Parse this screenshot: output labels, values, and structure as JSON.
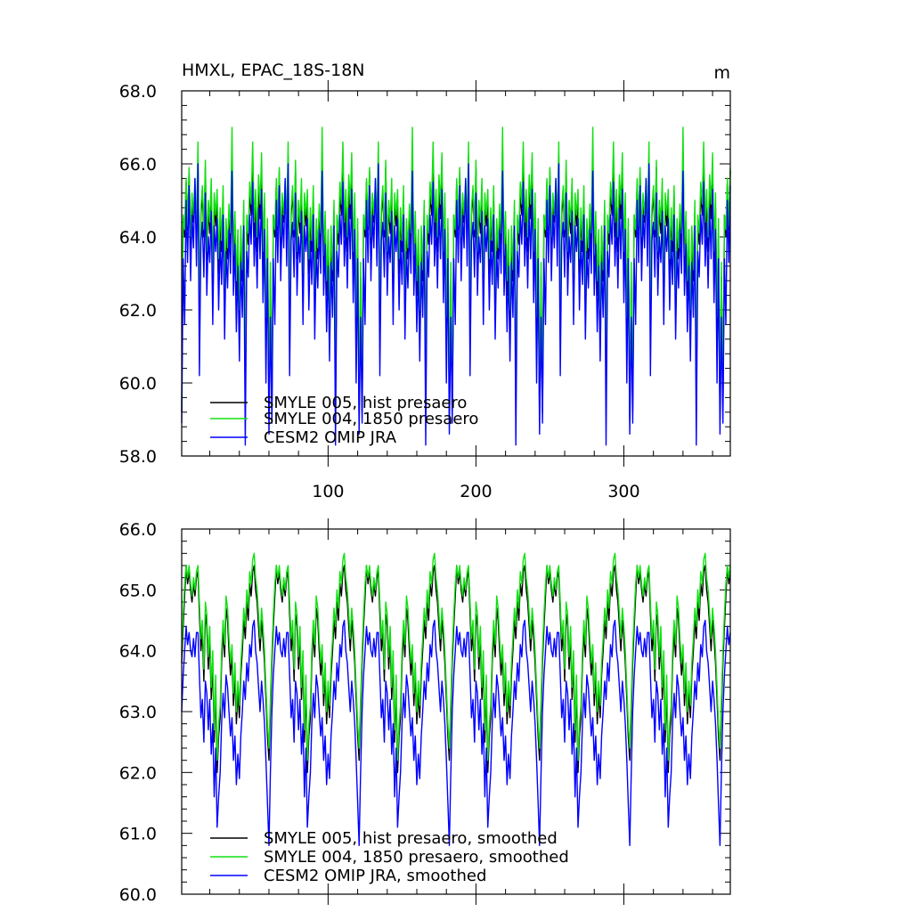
{
  "chart_data": [
    {
      "type": "line",
      "title": "HMXL, EPAC_18S-18N",
      "unit": "m",
      "xlabel": "",
      "ylabel": "",
      "xlim": [
        1,
        372
      ],
      "ylim": [
        58.0,
        68.0
      ],
      "y_ticks": [
        "58.0",
        "60.0",
        "62.0",
        "64.0",
        "66.0",
        "68.0"
      ],
      "x_ticks": [
        "100",
        "200",
        "300"
      ],
      "x_tick_values": [
        100,
        200,
        300
      ],
      "legend_position": "bottom-left",
      "series": [
        {
          "name": "SMYLE 005, hist presaero",
          "color": "#000000",
          "cycle": [
            59.2,
            64.6,
            64.0,
            65.5,
            64.2,
            65.8,
            63.8,
            65.0,
            64.4,
            65.4,
            64.0,
            66.2,
            61.8,
            64.6,
            65.2,
            64.0,
            65.9,
            63.4,
            64.8,
            64.1,
            65.3,
            62.6,
            64.9,
            64.3,
            65.0,
            63.0,
            64.5,
            63.6,
            65.1,
            62.0,
            64.2,
            63.4,
            64.6,
            63.8,
            66.3,
            63.2,
            64.4,
            62.4,
            63.9,
            61.6,
            64.0,
            62.8,
            64.7,
            59.6,
            64.3,
            63.8,
            65.2,
            64.6,
            66.1,
            64.0,
            64.9,
            63.6,
            65.3,
            64.5,
            65.8,
            63.2,
            64.8,
            61.4,
            64.1,
            59.0,
            62.9
          ]
        },
        {
          "name": "SMYLE 004, 1850 presaero",
          "color": "#10e010",
          "cycle": [
            59.4,
            64.6,
            64.2,
            65.6,
            64.3,
            65.9,
            64.0,
            65.2,
            64.6,
            65.6,
            64.3,
            66.6,
            62.2,
            64.8,
            65.4,
            64.2,
            66.1,
            63.6,
            65.0,
            64.4,
            65.6,
            63.0,
            65.2,
            64.6,
            65.3,
            63.4,
            64.8,
            63.9,
            65.4,
            62.4,
            64.5,
            63.7,
            64.9,
            64.1,
            67.0,
            63.5,
            64.7,
            62.8,
            64.2,
            62.0,
            64.3,
            63.1,
            65.0,
            59.9,
            64.6,
            64.1,
            65.5,
            64.9,
            66.6,
            64.4,
            65.3,
            64.0,
            65.7,
            64.9,
            66.3,
            63.6,
            65.2,
            61.8,
            64.5,
            59.4,
            63.3
          ]
        },
        {
          "name": "CESM2 OMIP JRA",
          "color": "#0000ff",
          "cycle": [
            58.9,
            63.4,
            61.6,
            65.0,
            63.3,
            65.4,
            62.8,
            64.6,
            63.7,
            65.6,
            63.2,
            66.0,
            60.2,
            63.9,
            64.4,
            62.9,
            65.2,
            62.4,
            64.0,
            63.3,
            64.7,
            61.6,
            64.3,
            63.6,
            64.5,
            62.0,
            63.9,
            62.7,
            64.6,
            61.2,
            63.6,
            62.6,
            64.2,
            63.0,
            65.8,
            62.4,
            63.8,
            61.4,
            63.2,
            60.6,
            63.3,
            61.8,
            64.3,
            58.3,
            63.6,
            62.9,
            64.6,
            63.8,
            65.5,
            63.2,
            64.4,
            62.6,
            64.8,
            63.4,
            65.3,
            62.2,
            64.2,
            60.0,
            63.4,
            58.6,
            61.8
          ]
        }
      ]
    },
    {
      "type": "line",
      "title": "",
      "xlabel": "",
      "ylabel": "",
      "xlim": [
        1,
        372
      ],
      "ylim": [
        60.0,
        66.0
      ],
      "y_ticks": [
        "60.0",
        "61.0",
        "62.0",
        "63.0",
        "64.0",
        "65.0",
        "66.0"
      ],
      "legend_position": "bottom-left",
      "series": [
        {
          "name": "SMYLE 005, hist presaero, smoothed",
          "color": "#000000",
          "cycle": [
            63.8,
            64.4,
            64.9,
            65.4,
            65.1,
            65.3,
            65.0,
            64.8,
            65.1,
            64.9,
            65.2,
            65.3,
            64.6,
            64.0,
            64.3,
            63.5,
            64.6,
            64.4,
            63.7,
            64.2,
            63.2,
            63.8,
            62.5,
            63.4,
            62.0,
            62.6,
            62.9,
            63.8,
            64.3,
            63.9,
            64.7,
            64.5,
            64.0,
            63.6,
            63.9,
            63.1,
            63.6,
            62.8,
            63.3,
            62.9,
            63.6,
            64.0,
            64.5,
            64.2,
            64.8,
            64.5,
            65.1,
            64.9,
            65.3,
            65.4,
            65.0,
            64.8,
            64.4,
            64.0,
            64.5,
            64.2,
            63.8,
            63.2,
            62.6,
            62.2,
            63.0
          ]
        },
        {
          "name": "SMYLE 004, 1850 presaero, smoothed",
          "color": "#10e010",
          "cycle": [
            64.0,
            64.6,
            65.1,
            65.4,
            65.2,
            65.4,
            65.1,
            64.9,
            65.2,
            65.0,
            65.3,
            65.4,
            64.8,
            64.2,
            64.5,
            63.7,
            64.8,
            64.6,
            63.9,
            64.4,
            63.4,
            64.0,
            62.7,
            63.6,
            62.2,
            62.8,
            63.1,
            64.0,
            64.5,
            64.1,
            64.9,
            64.7,
            64.2,
            63.8,
            64.1,
            63.3,
            63.8,
            63.0,
            63.5,
            63.1,
            63.8,
            64.2,
            64.7,
            64.4,
            65.0,
            64.7,
            65.3,
            65.1,
            65.5,
            65.6,
            65.2,
            65.0,
            64.6,
            64.2,
            64.7,
            64.4,
            64.0,
            63.4,
            62.8,
            62.4,
            63.2
          ]
        },
        {
          "name": "CESM2 OMIP JRA, smoothed",
          "color": "#0000ff",
          "cycle": [
            63.0,
            63.6,
            64.0,
            64.4,
            64.1,
            64.3,
            64.0,
            63.9,
            64.2,
            63.9,
            64.3,
            64.3,
            63.6,
            62.9,
            63.2,
            62.5,
            63.5,
            63.3,
            62.7,
            63.2,
            62.3,
            62.8,
            61.6,
            62.4,
            61.1,
            61.6,
            62.0,
            62.8,
            63.3,
            62.9,
            63.6,
            63.4,
            63.0,
            62.6,
            62.9,
            62.2,
            62.6,
            61.8,
            62.3,
            61.9,
            62.6,
            63.0,
            63.5,
            63.2,
            63.8,
            63.5,
            64.1,
            63.9,
            64.4,
            64.5,
            64.0,
            63.8,
            63.4,
            63.0,
            63.5,
            63.2,
            62.8,
            62.2,
            61.5,
            60.8,
            62.0
          ]
        }
      ]
    }
  ]
}
